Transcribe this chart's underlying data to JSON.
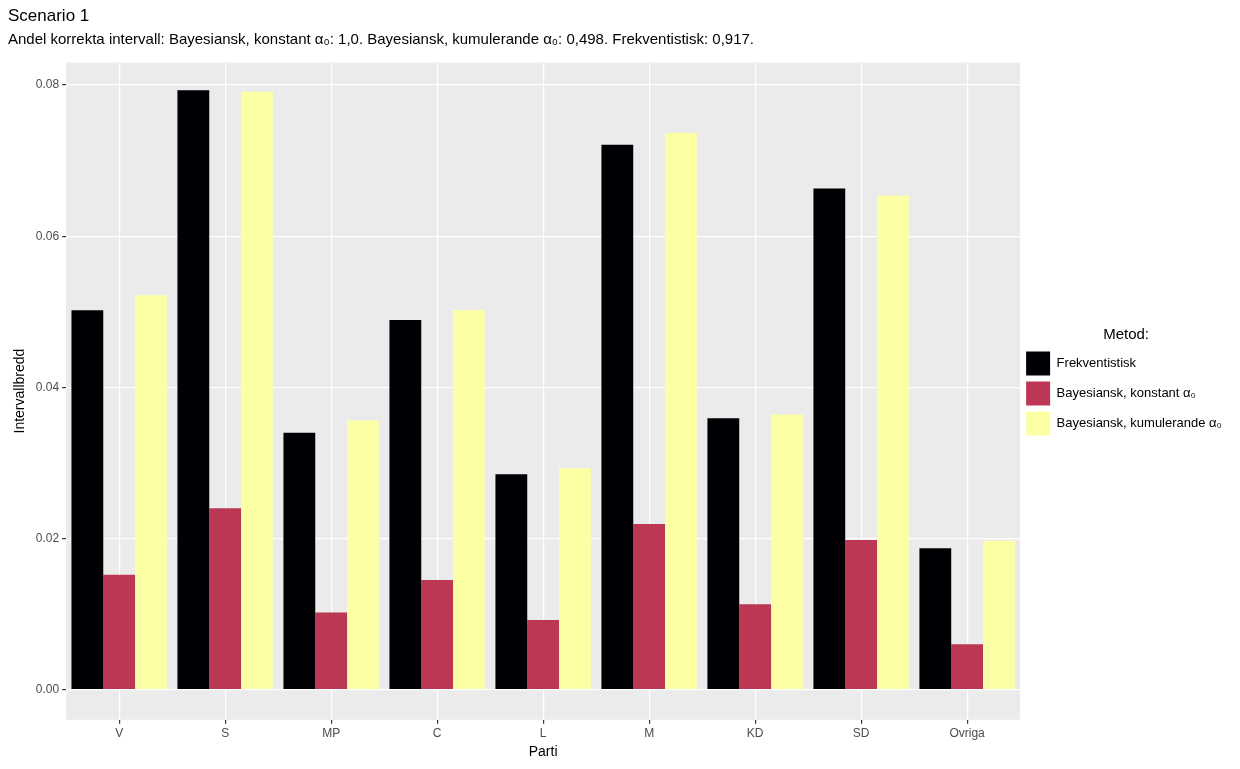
{
  "chart_data": {
    "type": "bar",
    "title": "Scenario 1",
    "subtitle": "Andel korrekta intervall: Bayesiansk, konstant α₀: 1,0. Bayesiansk, kumulerande α₀: 0,498. Frekventistisk: 0,917.",
    "xlabel": "Parti",
    "ylabel": "Intervallbredd",
    "legend_title": "Metod:",
    "categories": [
      "V",
      "S",
      "MP",
      "C",
      "L",
      "M",
      "KD",
      "SD",
      "Ovriga"
    ],
    "series": [
      {
        "name": "Frekventistisk",
        "color": "#000004",
        "values": [
          0.0502,
          0.0793,
          0.034,
          0.0489,
          0.0285,
          0.0721,
          0.0359,
          0.0663,
          0.0187
        ]
      },
      {
        "name": "Bayesiansk, konstant α₀",
        "color": "#bb3754",
        "values": [
          0.0152,
          0.024,
          0.0102,
          0.0145,
          0.0092,
          0.0219,
          0.0113,
          0.0198,
          0.006
        ]
      },
      {
        "name": "Bayesiansk, kumulerande α₀",
        "color": "#fcffa4",
        "values": [
          0.0522,
          0.0791,
          0.0356,
          0.0502,
          0.0293,
          0.0737,
          0.0364,
          0.0654,
          0.0197
        ]
      }
    ],
    "ylim": [
      -0.004,
      0.083
    ],
    "yticks": [
      {
        "value": 0,
        "label": "0.00"
      },
      {
        "value": 0.02,
        "label": "0.02"
      },
      {
        "value": 0.04,
        "label": "0.04"
      },
      {
        "value": 0.06,
        "label": "0.06"
      },
      {
        "value": 0.08,
        "label": "0.08"
      }
    ],
    "grid": true,
    "legend": "right"
  }
}
